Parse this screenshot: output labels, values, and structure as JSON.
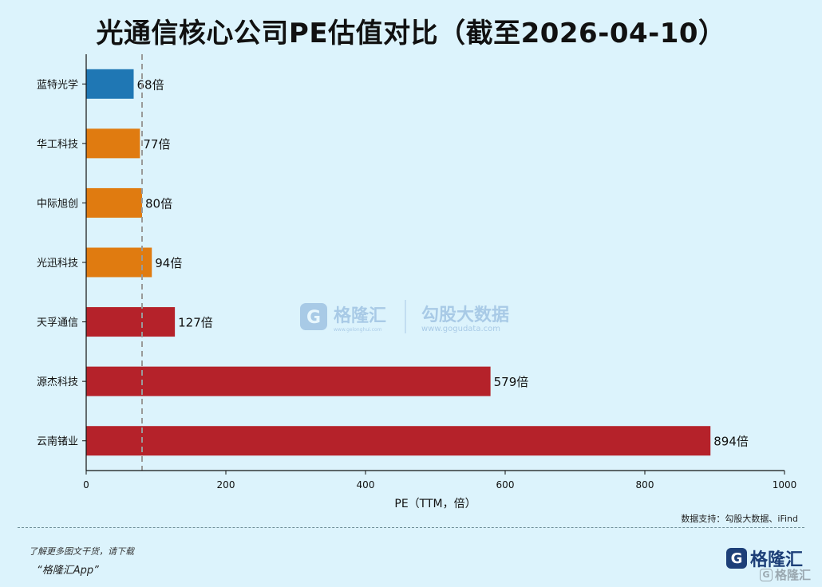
{
  "chart_data": {
    "type": "bar",
    "orientation": "horizontal",
    "title": "光通信核心公司PE估值对比（截至2026-04-10）",
    "xlabel": "PE（TTM，倍）",
    "ylabel": "",
    "categories": [
      "蓝特光学",
      "华工科技",
      "中际旭创",
      "光迅科技",
      "天孚通信",
      "源杰科技",
      "云南锗业"
    ],
    "values": [
      68,
      77,
      80,
      94,
      127,
      579,
      894
    ],
    "data_labels": [
      "68倍",
      "77倍",
      "80倍",
      "94倍",
      "127倍",
      "579倍",
      "894倍"
    ],
    "bar_colors": [
      "#1f77b4",
      "#e07b10",
      "#e07b10",
      "#e07b10",
      "#b5222a",
      "#b5222a",
      "#b5222a"
    ],
    "xlim": [
      0,
      1000
    ],
    "xticks": [
      0,
      200,
      400,
      600,
      800,
      1000
    ],
    "reference_line": 80,
    "grid": false
  },
  "footer": {
    "source": "数据支持：勾股大数据、iFind",
    "promo_line1": "了解更多图文干货，请下载",
    "promo_line2": "“格隆汇App”",
    "brand_icon": "G",
    "brand_name": "格隆汇",
    "watermark_corner": "格隆汇"
  },
  "watermark": {
    "brand1": "格隆汇",
    "brand2": "勾股大数据",
    "url1": "www.gelonghui.com",
    "url2": "www.gogudata.com"
  }
}
